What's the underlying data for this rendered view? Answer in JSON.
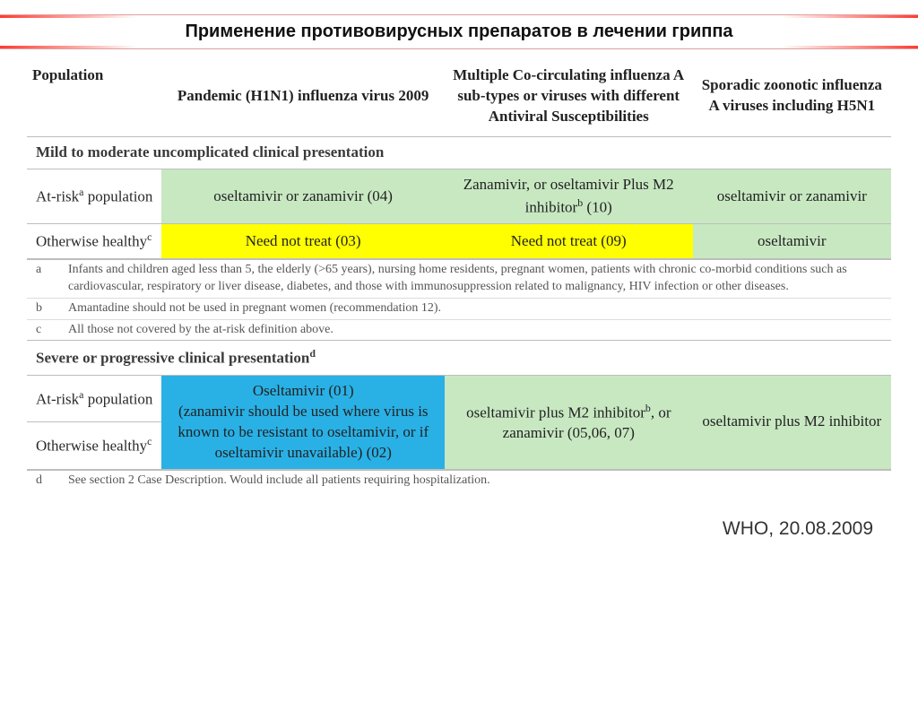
{
  "title": "Применение противовирусных препаратов в лечении гриппа",
  "colors": {
    "green": "#c8e8c2",
    "yellow": "#ffff00",
    "blue": "#29b1e6",
    "band_red": "#ff3b30"
  },
  "columns": {
    "c0": "Population",
    "c1": "Pandemic (H1N1) influenza virus 2009",
    "c2": "Multiple Co-circulating influenza A sub-types or viruses with different Antiviral Susceptibilities",
    "c3": "Sporadic zoonotic influenza A viruses including H5N1"
  },
  "section1_heading": "Mild to moderate uncomplicated clinical presentation",
  "section1": {
    "row1_label_html": "At-risk<sup>a</sup> population",
    "row1_c1": "oseltamivir or zanamivir (04)",
    "row1_c2_html": "Zanamivir,  or oseltamivir Plus M2 inhibitor<sup>b</sup> (10)",
    "row1_c3": "oseltamivir or zanamivir",
    "row2_label_html": "Otherwise healthy<sup>c</sup>",
    "row2_c1": "Need not treat (03)",
    "row2_c2": "Need not treat (09)",
    "row2_c3": "oseltamivir"
  },
  "notes1": {
    "a": "Infants and children aged less than 5, the elderly (>65 years), nursing home residents, pregnant women, patients with chronic co-morbid conditions such as cardiovascular, respiratory or liver disease, diabetes, and those with immunosuppression related to malignancy, HIV infection or other diseases.",
    "b": "Amantadine should not be used in pregnant women (recommendation 12).",
    "c": "All those not covered by the at-risk definition above."
  },
  "section2_heading_html": "Severe or progressive clinical presentation<sup>d</sup>",
  "section2": {
    "row1_label_html": "At-risk<sup>a</sup> population",
    "row2_label_html": "Otherwise healthy<sup>c</sup>",
    "merged_c1": "Oseltamivir (01)\n(zanamivir should be used where virus is known to be resistant to oseltamivir, or if oseltamivir unavailable) (02)",
    "merged_c2_html": "oseltamivir plus M2 inhibitor<sup>b</sup>,  or zanamivir (05,06, 07)",
    "merged_c3": "oseltamivir plus M2 inhibitor"
  },
  "notes2": {
    "d": "See section 2 Case Description.  Would include all patients requiring hospitalization."
  },
  "source": "WHO, 20.08.2009",
  "col_widths": {
    "c0": 140,
    "c1": 320,
    "c2": 280,
    "c3": 224
  }
}
